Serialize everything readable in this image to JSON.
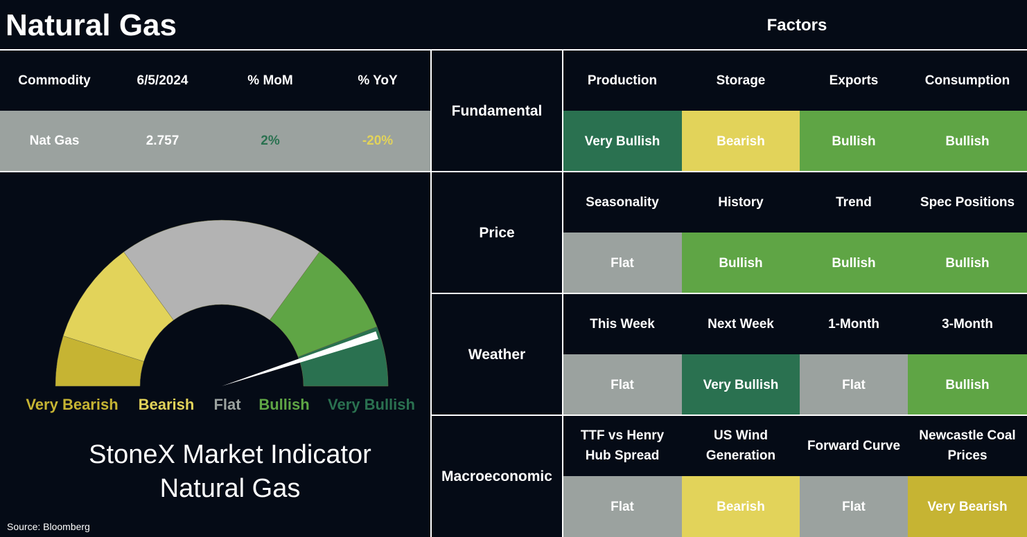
{
  "header": {
    "title": "Natural Gas",
    "factors_title": "Factors"
  },
  "summary": {
    "columns": [
      "Commodity",
      "6/5/2024",
      "% MoM",
      "% YoY"
    ],
    "row": [
      "Nat Gas",
      "2.757",
      "2%",
      "-20%"
    ]
  },
  "gauge": {
    "labels": [
      {
        "name": "Very Bearish",
        "color": "#c6b433"
      },
      {
        "name": "Bearish",
        "color": "#e2d35a"
      },
      {
        "name": "Flat",
        "color": "#9ba29f"
      },
      {
        "name": "Bullish",
        "color": "#5fa545"
      },
      {
        "name": "Very Bullish",
        "color": "#2a7150"
      }
    ],
    "caption": [
      "StoneX Market Indicator",
      "Natural Gas"
    ]
  },
  "source": "Source: Bloomberg",
  "factors": [
    {
      "group": "Fundamental",
      "items": [
        {
          "name": "Production",
          "rating": "Very Bullish"
        },
        {
          "name": "Storage",
          "rating": "Bearish"
        },
        {
          "name": "Exports",
          "rating": "Bullish"
        },
        {
          "name": "Consumption",
          "rating": "Bullish"
        }
      ]
    },
    {
      "group": "Price",
      "items": [
        {
          "name": "Seasonality",
          "rating": "Flat"
        },
        {
          "name": "History",
          "rating": "Bullish"
        },
        {
          "name": "Trend",
          "rating": "Bullish"
        },
        {
          "name": "Spec Positions",
          "rating": "Bullish"
        }
      ]
    },
    {
      "group": "Weather",
      "items": [
        {
          "name": "This Week",
          "rating": "Flat"
        },
        {
          "name": "Next Week",
          "rating": "Very Bullish"
        },
        {
          "name": "1-Month",
          "rating": "Flat"
        },
        {
          "name": "3-Month",
          "rating": "Bullish"
        }
      ]
    },
    {
      "group": "Macroeconomic",
      "items": [
        {
          "name": "TTF vs Henry Hub Spread",
          "rating": "Flat"
        },
        {
          "name": "US Wind Generation",
          "rating": "Bearish"
        },
        {
          "name": "Forward Curve",
          "rating": "Flat"
        },
        {
          "name": "Newcastle Coal Prices",
          "rating": "Very Bearish"
        }
      ]
    }
  ]
}
